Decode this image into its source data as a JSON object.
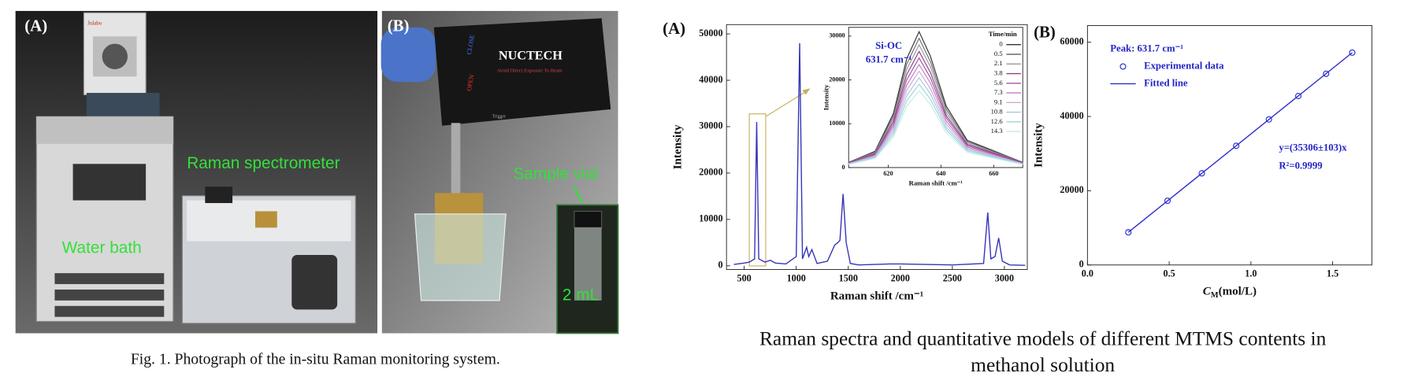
{
  "photo_panel": {
    "labels": [
      "(A)",
      "(B)"
    ],
    "annotations": [
      "Raman spectrometer",
      "Water bath",
      "Sample vial",
      "2 mL"
    ],
    "device_texts": [
      "Julabo",
      "NUCTECH",
      "Avoid Direct Exposure To Beam",
      "OPEN",
      "CLOSE",
      "Trigger"
    ],
    "caption": "Fig. 1. Photograph of the in-situ Raman monitoring system."
  },
  "chart_data": [
    {
      "type": "line",
      "panel_label": "(A)",
      "x_label": "Raman shift /cm⁻¹",
      "y_label": "Intensity",
      "color": "#3434b8",
      "x": [
        400,
        500,
        550,
        600,
        620,
        640,
        700,
        750,
        800,
        900,
        1000,
        1033,
        1060,
        1100,
        1120,
        1150,
        1200,
        1300,
        1370,
        1400,
        1420,
        1450,
        1480,
        1520,
        1600,
        1900,
        2000,
        2500,
        2800,
        2840,
        2870,
        2910,
        2945,
        2980,
        3050,
        3200
      ],
      "values": [
        300,
        600,
        800,
        1500,
        31000,
        1500,
        800,
        1200,
        600,
        400,
        2000,
        48000,
        1500,
        4000,
        2000,
        3500,
        500,
        1000,
        4500,
        5000,
        5500,
        15500,
        5000,
        500,
        200,
        400,
        400,
        200,
        500,
        11500,
        1500,
        2000,
        6000,
        1000,
        200,
        100
      ],
      "xlim": [
        330,
        3220
      ],
      "ylim": [
        -800,
        52000
      ],
      "xticks": [
        500,
        1000,
        1500,
        2000,
        2500,
        3000
      ],
      "yticks": [
        0,
        10000,
        20000,
        30000,
        40000,
        50000
      ]
    },
    {
      "type": "line",
      "x_label": "Raman shift /cm⁻¹",
      "y_label": "Intensity",
      "legend_title": "Time/min",
      "annotations": [
        "Si-OC",
        "631.7 cm⁻¹"
      ],
      "x": [
        605,
        615,
        622,
        627,
        631.7,
        636,
        642,
        650,
        671
      ],
      "series": [
        {
          "name": "0",
          "color": "#333333",
          "values": [
            1200,
            3700,
            12400,
            24800,
            31000,
            25400,
            14000,
            6200,
            1200
          ]
        },
        {
          "name": "0.5",
          "color": "#6a6a6a",
          "values": [
            1200,
            3500,
            11800,
            23600,
            29500,
            24200,
            13300,
            5900,
            1200
          ]
        },
        {
          "name": "2.1",
          "color": "#9a9a9a",
          "values": [
            1100,
            3400,
            11200,
            22400,
            28000,
            23000,
            12600,
            5600,
            1100
          ]
        },
        {
          "name": "3.8",
          "color": "#8a3f8a",
          "values": [
            1100,
            3200,
            10600,
            21200,
            26500,
            21700,
            11900,
            5300,
            1100
          ]
        },
        {
          "name": "5.6",
          "color": "#a254a2",
          "values": [
            1000,
            3000,
            10000,
            20000,
            25000,
            20500,
            11300,
            5000,
            1000
          ]
        },
        {
          "name": "7.3",
          "color": "#bd7fc0",
          "values": [
            900,
            2800,
            9400,
            18800,
            23500,
            19300,
            10600,
            4700,
            900
          ]
        },
        {
          "name": "9.1",
          "color": "#d2a8d6",
          "values": [
            900,
            2600,
            8800,
            17600,
            22000,
            18000,
            9900,
            4400,
            900
          ]
        },
        {
          "name": "10.8",
          "color": "#a8c8e0",
          "values": [
            800,
            2500,
            8200,
            16400,
            20500,
            16800,
            9200,
            4100,
            800
          ]
        },
        {
          "name": "12.6",
          "color": "#9cd6d8",
          "values": [
            800,
            2300,
            7600,
            15200,
            19000,
            15600,
            8600,
            3800,
            800
          ]
        },
        {
          "name": "14.3",
          "color": "#c5ece8",
          "values": [
            700,
            2100,
            7000,
            14000,
            17500,
            14400,
            7900,
            3500,
            700
          ]
        }
      ],
      "xlim": [
        605,
        671
      ],
      "ylim": [
        0,
        32000
      ],
      "xticks": [
        620,
        640,
        660
      ],
      "yticks": [
        0,
        10000,
        20000,
        30000
      ]
    },
    {
      "type": "scatter",
      "panel_label": "(B)",
      "x_label": {
        "main": "C",
        "sub": "M",
        "unit": "(mol/L)"
      },
      "y_label": "Intensity",
      "annotations": [
        "Peak: 631.7 cm⁻¹",
        "y=(35306±103)x",
        "R²=0.9999"
      ],
      "series": [
        {
          "name": "Experimental data",
          "type": "scatter",
          "color": "#2b2bd0",
          "x": [
            0.25,
            0.49,
            0.7,
            0.91,
            1.11,
            1.29,
            1.46,
            1.62
          ],
          "values": [
            8800,
            17300,
            24700,
            32100,
            39200,
            45500,
            51500,
            57200
          ]
        },
        {
          "name": "Fitted line",
          "type": "line",
          "color": "#2b2bd0",
          "x": [
            0.25,
            1.62
          ],
          "values": [
            8800,
            57200
          ]
        }
      ],
      "xlim": [
        0,
        1.74
      ],
      "ylim": [
        0,
        64500
      ],
      "xticks": [
        {
          "value": 0,
          "label": "0.0"
        },
        0.5,
        {
          "value": 1,
          "label": "1.0"
        },
        1.5
      ],
      "yticks": [
        0,
        20000,
        40000,
        60000
      ]
    }
  ],
  "caption": [
    "Raman spectra and quantitative models of different MTMS contents in",
    "methanol solution"
  ]
}
